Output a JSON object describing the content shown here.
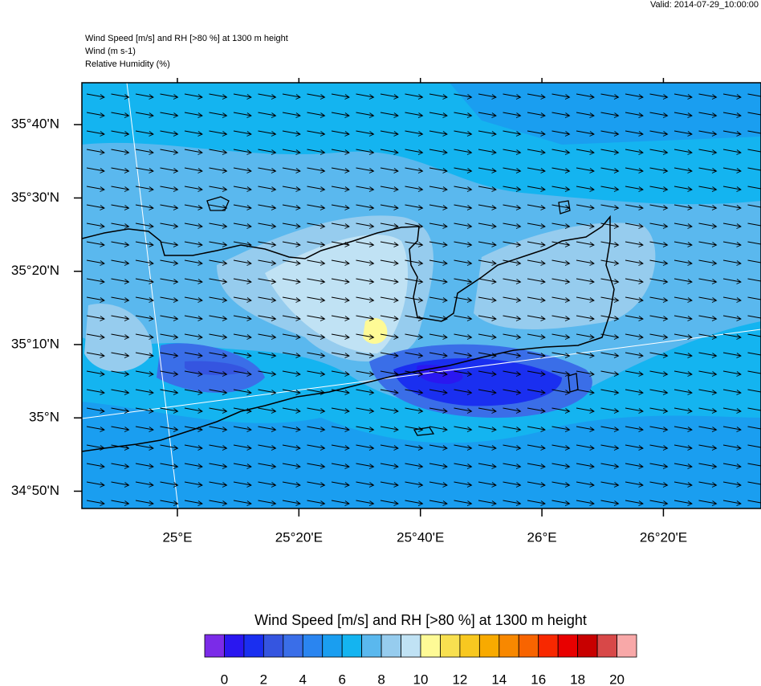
{
  "header": {
    "valid": "Valid: 2014-07-29_10:00:00",
    "lines": [
      "Wind Speed [m/s] and RH [>80 %] at 1300 m height",
      "Wind   (m s-1)",
      "Relative Humidity   (%)"
    ]
  },
  "map": {
    "lonlim": [
      24.738,
      26.601
    ],
    "latlim": [
      34.794,
      35.762
    ],
    "lon_ticks": [
      {
        "value": 25,
        "label": "25°E"
      },
      {
        "value": 25.3333,
        "label": "25°20'E"
      },
      {
        "value": 25.6667,
        "label": "25°40'E"
      },
      {
        "value": 26,
        "label": "26°E"
      },
      {
        "value": 26.3333,
        "label": "26°20'E"
      }
    ],
    "lat_ticks": [
      {
        "value": 35.6667,
        "label": "35°40'N"
      },
      {
        "value": 35.5,
        "label": "35°30'N"
      },
      {
        "value": 35.3333,
        "label": "35°20'N"
      },
      {
        "value": 35.1667,
        "label": "35°10'N"
      },
      {
        "value": 35,
        "label": "35°N"
      },
      {
        "value": 34.8333,
        "label": "34°50'N"
      }
    ]
  },
  "colorbar": {
    "title": "Wind Speed [m/s] and RH [>80 %] at 1300 m height",
    "lim": [
      -1,
      21
    ],
    "colors": [
      "#7b2be8",
      "#2a17f0",
      "#1a2ff0",
      "#3555e0",
      "#3a6ee8",
      "#2a85f0",
      "#1a9ef0",
      "#14b4f0",
      "#5ab8ee",
      "#96ccee",
      "#c0e2f4",
      "#fefa96",
      "#f8e050",
      "#f8c820",
      "#f8aa00",
      "#f88800",
      "#f86400",
      "#f82800",
      "#e80000",
      "#c80000",
      "#d84848",
      "#f8a8a8"
    ],
    "ticks": [
      0,
      2,
      4,
      6,
      8,
      10,
      12,
      14,
      16,
      18,
      20
    ]
  }
}
